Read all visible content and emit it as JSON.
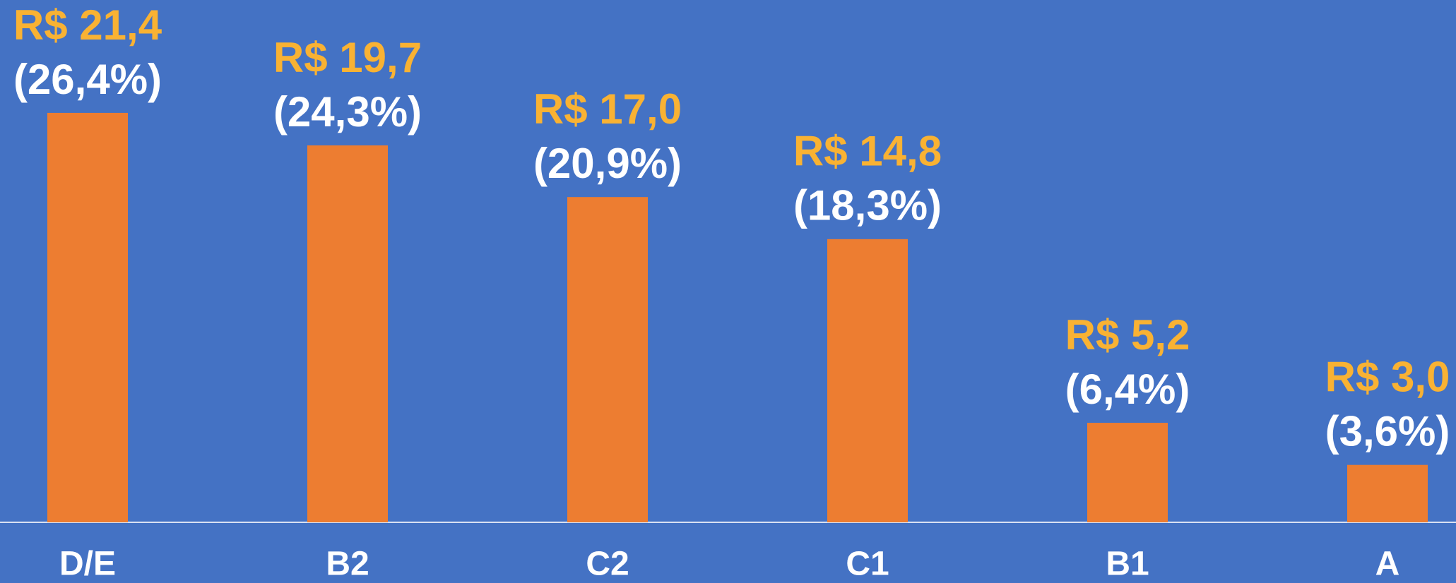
{
  "chart_data": {
    "type": "bar",
    "categories": [
      "D/E",
      "B2",
      "C2",
      "C1",
      "B1",
      "A"
    ],
    "values": [
      21.4,
      19.7,
      17.0,
      14.8,
      5.2,
      3.0
    ],
    "value_labels": [
      "R$ 21,4",
      "R$ 19,7",
      "R$ 17,0",
      "R$ 14,8",
      "R$ 5,2",
      "R$ 3,0"
    ],
    "shares": [
      26.4,
      24.3,
      20.9,
      18.3,
      6.4,
      3.6
    ],
    "share_labels": [
      "(26,4%)",
      "(24,3%)",
      "(20,9%)",
      "(18,3%)",
      "(6,4%)",
      "(3,6%)"
    ],
    "color": "#ed7d31",
    "ylim": [
      0,
      27.3
    ]
  }
}
